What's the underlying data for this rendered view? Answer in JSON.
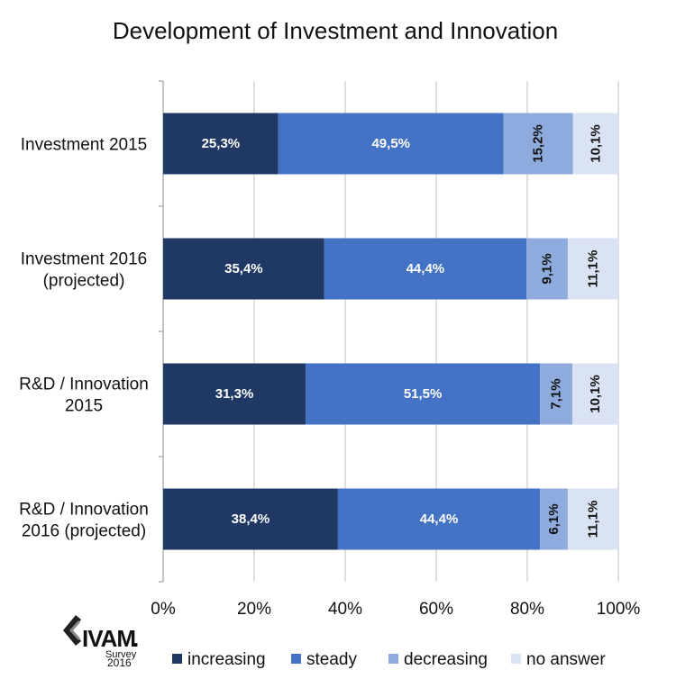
{
  "chart_data": {
    "type": "bar",
    "orientation": "horizontal",
    "stacked": true,
    "title": "Development of Investment and Innovation",
    "categories": [
      [
        "Investment 2015"
      ],
      [
        "Investment 2016",
        "(projected)"
      ],
      [
        "R&D / Innovation",
        "2015"
      ],
      [
        "R&D / Innovation",
        "2016 (projected)"
      ]
    ],
    "series": [
      {
        "name": "increasing",
        "color": "#1f3864",
        "label_color": "#ffffff",
        "label_rotated": false,
        "values": [
          25.3,
          35.4,
          31.3,
          38.4
        ],
        "labels": [
          "25,3%",
          "35,4%",
          "31,3%",
          "38,4%"
        ]
      },
      {
        "name": "steady",
        "color": "#4472c4",
        "label_color": "#ffffff",
        "label_rotated": false,
        "values": [
          49.5,
          44.4,
          51.5,
          44.4
        ],
        "labels": [
          "49,5%",
          "44,4%",
          "51,5%",
          "44,4%"
        ]
      },
      {
        "name": "decreasing",
        "color": "#8faadc",
        "label_color": "#111111",
        "label_rotated": true,
        "values": [
          15.2,
          9.1,
          7.1,
          6.1
        ],
        "labels": [
          "15,2%",
          "9,1%",
          "7,1%",
          "6,1%"
        ]
      },
      {
        "name": "no answer",
        "color": "#dae3f3",
        "label_color": "#111111",
        "label_rotated": true,
        "values": [
          10.1,
          11.1,
          10.1,
          11.1
        ],
        "labels": [
          "10,1%",
          "11,1%",
          "10,1%",
          "11,1%"
        ]
      }
    ],
    "xlim": [
      0,
      100
    ],
    "xticks": [
      "0%",
      "20%",
      "40%",
      "60%",
      "80%",
      "100%"
    ],
    "grid": true,
    "legend_position": "bottom"
  },
  "logo": {
    "name": "IVAM",
    "suffix": ".",
    "line1": "Survey",
    "line2": "2016"
  }
}
